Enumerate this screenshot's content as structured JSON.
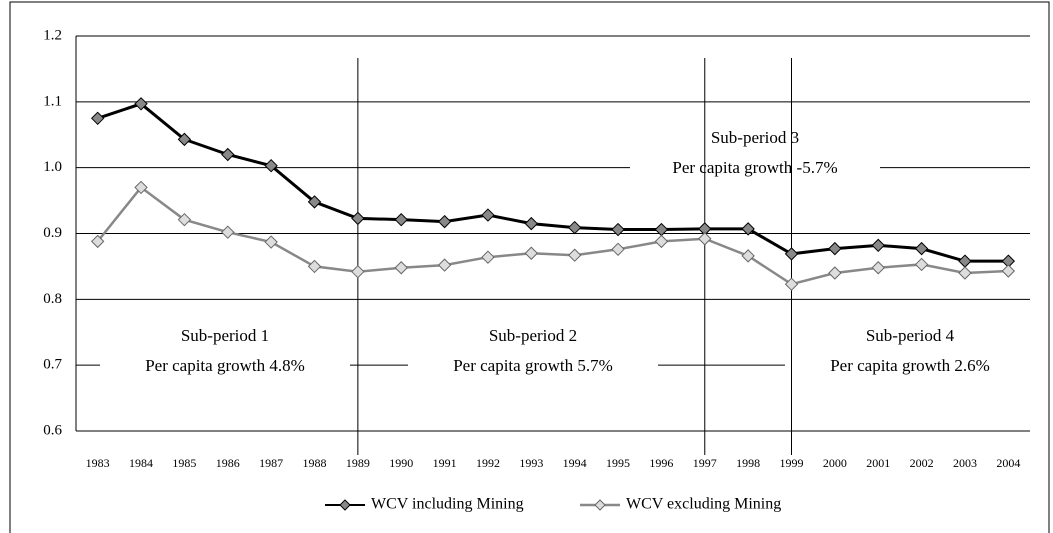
{
  "chart_data": {
    "type": "line",
    "categories": [
      "1983",
      "1984",
      "1985",
      "1986",
      "1987",
      "1988",
      "1989",
      "1990",
      "1991",
      "1992",
      "1993",
      "1994",
      "1995",
      "1996",
      "1997",
      "1998",
      "1999",
      "2000",
      "2001",
      "2002",
      "2003",
      "2004"
    ],
    "series": [
      {
        "name": "WCV including Mining",
        "color": "#000000",
        "marker_color": "#888888",
        "values": [
          1.075,
          1.097,
          1.043,
          1.02,
          1.003,
          0.948,
          0.923,
          0.921,
          0.918,
          0.928,
          0.915,
          0.909,
          0.906,
          0.906,
          0.907,
          0.907,
          0.869,
          0.877,
          0.882,
          0.877,
          0.858,
          0.858
        ]
      },
      {
        "name": "WCV excluding Mining",
        "color": "#888888",
        "marker_color": "#dddddd",
        "values": [
          0.888,
          0.97,
          0.921,
          0.902,
          0.887,
          0.85,
          0.842,
          0.848,
          0.852,
          0.864,
          0.87,
          0.867,
          0.876,
          0.888,
          0.892,
          0.866,
          0.823,
          0.84,
          0.848,
          0.853,
          0.84,
          0.843
        ]
      }
    ],
    "ylim": [
      0.6,
      1.2
    ],
    "yticks": [
      1.2,
      1.1,
      {
        "value": 1,
        "label": "1.0"
      },
      0.9,
      0.8,
      0.7,
      0.6
    ],
    "grid": true,
    "dividers": [
      "1989",
      "1997",
      "1999"
    ],
    "annotations": [
      {
        "label": "Sub-period 1",
        "text": "Per capita growth 4.8%"
      },
      {
        "label": "Sub-period 2",
        "text": "Per capita growth 5.7%"
      },
      {
        "label": "Sub-period 3",
        "text": "Per capita growth -5.7%"
      },
      {
        "label": "Sub-period 4",
        "text": "Per capita growth 2.6%"
      }
    ],
    "legend": "bottom"
  }
}
